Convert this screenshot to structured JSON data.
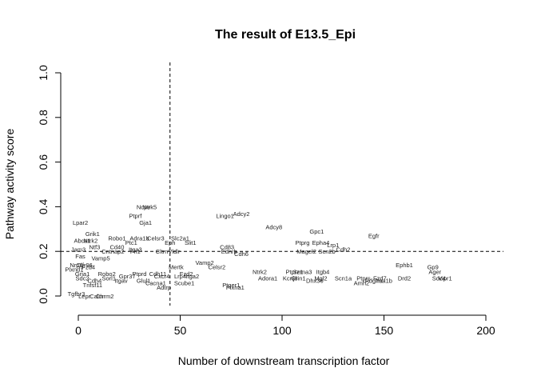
{
  "chart_data": {
    "type": "scatter",
    "title": "The result of E13.5_Epi",
    "xlabel": "Number of downstream transcription factor",
    "ylabel": "Pathway activity score",
    "xlim": [
      0,
      200
    ],
    "ylim": [
      0,
      1
    ],
    "xticks": [
      0,
      50,
      100,
      150,
      200
    ],
    "yticks": [
      0.0,
      0.2,
      0.4,
      0.6,
      0.8,
      1.0
    ],
    "x_threshold": 45,
    "y_threshold": 0.2,
    "threshold_style": "dashed",
    "grid": false,
    "legend": false,
    "points": [
      {
        "label": "Lpar2",
        "x": 1,
        "y": 0.33
      },
      {
        "label": "Grik1",
        "x": 7,
        "y": 0.28
      },
      {
        "label": "Ptprf",
        "x": 28,
        "y": 0.36
      },
      {
        "label": "Gja1",
        "x": 33,
        "y": 0.33
      },
      {
        "label": "Ntrk5",
        "x": 35,
        "y": 0.4
      },
      {
        "label": "Ncpe",
        "x": 32,
        "y": 0.4
      },
      {
        "label": "Lingo1",
        "x": 72,
        "y": 0.36
      },
      {
        "label": "Adcy2",
        "x": 80,
        "y": 0.37
      },
      {
        "label": "Adcy8",
        "x": 96,
        "y": 0.31
      },
      {
        "label": "Gpc1",
        "x": 117,
        "y": 0.29
      },
      {
        "label": "Egfr",
        "x": 145,
        "y": 0.27
      },
      {
        "label": "Robo1",
        "x": 19,
        "y": 0.26
      },
      {
        "label": "Adra1b",
        "x": 30,
        "y": 0.26
      },
      {
        "label": "Celsr3",
        "x": 38,
        "y": 0.26
      },
      {
        "label": "Slc2a1",
        "x": 50,
        "y": 0.26
      },
      {
        "label": "Abca1",
        "x": 2,
        "y": 0.25
      },
      {
        "label": "Ntrk2",
        "x": 6,
        "y": 0.25
      },
      {
        "label": "Ptc1",
        "x": 26,
        "y": 0.24
      },
      {
        "label": "Slit1",
        "x": 55,
        "y": 0.24
      },
      {
        "label": "Eph",
        "x": 45,
        "y": 0.24
      },
      {
        "label": "Cd40",
        "x": 19,
        "y": 0.22
      },
      {
        "label": "Ntf3",
        "x": 8,
        "y": 0.22
      },
      {
        "label": "Itga3",
        "x": 28,
        "y": 0.21
      },
      {
        "label": "Cd83",
        "x": 73,
        "y": 0.22
      },
      {
        "label": "Ptprg",
        "x": 110,
        "y": 0.24
      },
      {
        "label": "Epha4",
        "x": 119,
        "y": 0.24
      },
      {
        "label": "Lrp1",
        "x": 125,
        "y": 0.23
      },
      {
        "label": "Jam3",
        "x": 0,
        "y": 0.21
      },
      {
        "label": "Cntnap2",
        "x": 17,
        "y": 0.2
      },
      {
        "label": "Fn1",
        "x": 28,
        "y": 0.2
      },
      {
        "label": "Cltrn",
        "x": 41,
        "y": 0.2
      },
      {
        "label": "Vldlr",
        "x": 47,
        "y": 0.2
      },
      {
        "label": "Ednrb",
        "x": 74,
        "y": 0.2
      },
      {
        "label": "Cdh6",
        "x": 80,
        "y": 0.19
      },
      {
        "label": "Magel2",
        "x": 112,
        "y": 0.2
      },
      {
        "label": "Scn2b",
        "x": 122,
        "y": 0.2
      },
      {
        "label": "Cdh2",
        "x": 130,
        "y": 0.21
      },
      {
        "label": "Fas",
        "x": 1,
        "y": 0.18
      },
      {
        "label": "Vamp5",
        "x": 11,
        "y": 0.17
      },
      {
        "label": "Nrp1",
        "x": -1,
        "y": 0.14
      },
      {
        "label": "Vamp2",
        "x": 62,
        "y": 0.15
      },
      {
        "label": "Olfr96",
        "x": 3,
        "y": 0.14
      },
      {
        "label": "Fzd4",
        "x": 5,
        "y": 0.13
      },
      {
        "label": "Plxnd1",
        "x": -2,
        "y": 0.12
      },
      {
        "label": "Celsr2",
        "x": 68,
        "y": 0.13
      },
      {
        "label": "Mertk",
        "x": 48,
        "y": 0.13
      },
      {
        "label": "Ephb1",
        "x": 160,
        "y": 0.14
      },
      {
        "label": "Gp9",
        "x": 174,
        "y": 0.13
      },
      {
        "label": "Ntrk2",
        "x": 89,
        "y": 0.11
      },
      {
        "label": "Ptprz1",
        "x": 106,
        "y": 0.11
      },
      {
        "label": "Itgb4",
        "x": 120,
        "y": 0.11
      },
      {
        "label": "Sema3",
        "x": 110,
        "y": 0.11
      },
      {
        "label": "Ager",
        "x": 175,
        "y": 0.11
      },
      {
        "label": "Robo2",
        "x": 14,
        "y": 0.1
      },
      {
        "label": "Gria1",
        "x": 2,
        "y": 0.1
      },
      {
        "label": "Cdh11",
        "x": 39,
        "y": 0.1
      },
      {
        "label": "Fzd2",
        "x": 53,
        "y": 0.1
      },
      {
        "label": "Ptprd",
        "x": 30,
        "y": 0.1
      },
      {
        "label": "Sorl1",
        "x": 15,
        "y": 0.08
      },
      {
        "label": "Gpr37",
        "x": 24,
        "y": 0.09
      },
      {
        "label": "Cxcr4",
        "x": 41,
        "y": 0.09
      },
      {
        "label": "Lrp4",
        "x": 50,
        "y": 0.09
      },
      {
        "label": "Itga2",
        "x": 56,
        "y": 0.09
      },
      {
        "label": "Sdc2",
        "x": 2,
        "y": 0.08
      },
      {
        "label": "Adora1",
        "x": 93,
        "y": 0.08
      },
      {
        "label": "Kcnj8",
        "x": 104,
        "y": 0.08
      },
      {
        "label": "Grin1",
        "x": 108,
        "y": 0.08
      },
      {
        "label": "Mgl2",
        "x": 119,
        "y": 0.08
      },
      {
        "label": "Scn1a",
        "x": 130,
        "y": 0.08
      },
      {
        "label": "Ptprs",
        "x": 140,
        "y": 0.08
      },
      {
        "label": "Fzd7",
        "x": 148,
        "y": 0.08
      },
      {
        "label": "Drd2",
        "x": 160,
        "y": 0.08
      },
      {
        "label": "Sdc4",
        "x": 177,
        "y": 0.08
      },
      {
        "label": "Vipr1",
        "x": 180,
        "y": 0.08
      },
      {
        "label": "Itgav",
        "x": 21,
        "y": 0.07
      },
      {
        "label": "Cdh4",
        "x": 8,
        "y": 0.07
      },
      {
        "label": "Glul1",
        "x": 32,
        "y": 0.07
      },
      {
        "label": "Cacna1",
        "x": 38,
        "y": 0.06
      },
      {
        "label": "Scube1",
        "x": 52,
        "y": 0.06
      },
      {
        "label": "Dhx36",
        "x": 116,
        "y": 0.07
      },
      {
        "label": "Amh2",
        "x": 139,
        "y": 0.06
      },
      {
        "label": "Pdgfra",
        "x": 145,
        "y": 0.07
      },
      {
        "label": "Ifna1b",
        "x": 150,
        "y": 0.07
      },
      {
        "label": "Ptger1",
        "x": 75,
        "y": 0.05
      },
      {
        "label": "Plxna1",
        "x": 77,
        "y": 0.04
      },
      {
        "label": "Adtrp",
        "x": 42,
        "y": 0.04
      },
      {
        "label": "Tnfsf11",
        "x": 7,
        "y": 0.05
      },
      {
        "label": "Tgfbr3",
        "x": -1,
        "y": 0.01
      },
      {
        "label": "Chrm2",
        "x": 13,
        "y": 0.0
      },
      {
        "label": "Lepr",
        "x": 3,
        "y": 0.0
      },
      {
        "label": "Calcr",
        "x": 9,
        "y": 0.0
      }
    ]
  }
}
